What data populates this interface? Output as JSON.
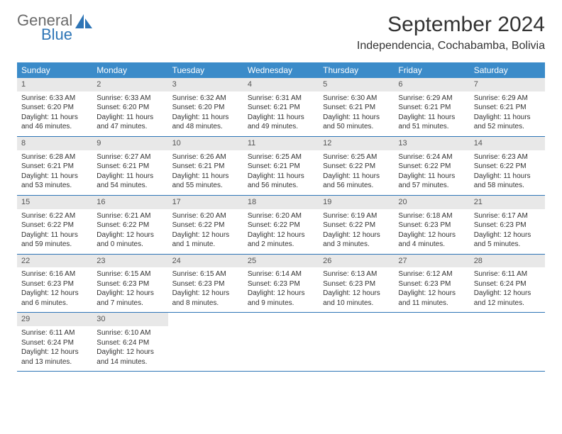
{
  "brand": {
    "general": "General",
    "blue": "Blue"
  },
  "title": "September 2024",
  "location": "Independencia, Cochabamba, Bolivia",
  "colors": {
    "header_bg": "#3b8bc9",
    "header_text": "#ffffff",
    "daynum_bg": "#e8e8e8",
    "week_border": "#2e75b6",
    "brand_gray": "#6b6b6b",
    "brand_blue": "#2e75b6",
    "text": "#333333",
    "page_bg": "#ffffff"
  },
  "typography": {
    "title_fontsize": 30,
    "location_fontsize": 16,
    "weekday_fontsize": 12,
    "cell_fontsize": 10
  },
  "weekdays": [
    "Sunday",
    "Monday",
    "Tuesday",
    "Wednesday",
    "Thursday",
    "Friday",
    "Saturday"
  ],
  "weeks": [
    [
      {
        "n": "1",
        "sunrise": "Sunrise: 6:33 AM",
        "sunset": "Sunset: 6:20 PM",
        "daylight": "Daylight: 11 hours and 46 minutes."
      },
      {
        "n": "2",
        "sunrise": "Sunrise: 6:33 AM",
        "sunset": "Sunset: 6:20 PM",
        "daylight": "Daylight: 11 hours and 47 minutes."
      },
      {
        "n": "3",
        "sunrise": "Sunrise: 6:32 AM",
        "sunset": "Sunset: 6:20 PM",
        "daylight": "Daylight: 11 hours and 48 minutes."
      },
      {
        "n": "4",
        "sunrise": "Sunrise: 6:31 AM",
        "sunset": "Sunset: 6:21 PM",
        "daylight": "Daylight: 11 hours and 49 minutes."
      },
      {
        "n": "5",
        "sunrise": "Sunrise: 6:30 AM",
        "sunset": "Sunset: 6:21 PM",
        "daylight": "Daylight: 11 hours and 50 minutes."
      },
      {
        "n": "6",
        "sunrise": "Sunrise: 6:29 AM",
        "sunset": "Sunset: 6:21 PM",
        "daylight": "Daylight: 11 hours and 51 minutes."
      },
      {
        "n": "7",
        "sunrise": "Sunrise: 6:29 AM",
        "sunset": "Sunset: 6:21 PM",
        "daylight": "Daylight: 11 hours and 52 minutes."
      }
    ],
    [
      {
        "n": "8",
        "sunrise": "Sunrise: 6:28 AM",
        "sunset": "Sunset: 6:21 PM",
        "daylight": "Daylight: 11 hours and 53 minutes."
      },
      {
        "n": "9",
        "sunrise": "Sunrise: 6:27 AM",
        "sunset": "Sunset: 6:21 PM",
        "daylight": "Daylight: 11 hours and 54 minutes."
      },
      {
        "n": "10",
        "sunrise": "Sunrise: 6:26 AM",
        "sunset": "Sunset: 6:21 PM",
        "daylight": "Daylight: 11 hours and 55 minutes."
      },
      {
        "n": "11",
        "sunrise": "Sunrise: 6:25 AM",
        "sunset": "Sunset: 6:21 PM",
        "daylight": "Daylight: 11 hours and 56 minutes."
      },
      {
        "n": "12",
        "sunrise": "Sunrise: 6:25 AM",
        "sunset": "Sunset: 6:22 PM",
        "daylight": "Daylight: 11 hours and 56 minutes."
      },
      {
        "n": "13",
        "sunrise": "Sunrise: 6:24 AM",
        "sunset": "Sunset: 6:22 PM",
        "daylight": "Daylight: 11 hours and 57 minutes."
      },
      {
        "n": "14",
        "sunrise": "Sunrise: 6:23 AM",
        "sunset": "Sunset: 6:22 PM",
        "daylight": "Daylight: 11 hours and 58 minutes."
      }
    ],
    [
      {
        "n": "15",
        "sunrise": "Sunrise: 6:22 AM",
        "sunset": "Sunset: 6:22 PM",
        "daylight": "Daylight: 11 hours and 59 minutes."
      },
      {
        "n": "16",
        "sunrise": "Sunrise: 6:21 AM",
        "sunset": "Sunset: 6:22 PM",
        "daylight": "Daylight: 12 hours and 0 minutes."
      },
      {
        "n": "17",
        "sunrise": "Sunrise: 6:20 AM",
        "sunset": "Sunset: 6:22 PM",
        "daylight": "Daylight: 12 hours and 1 minute."
      },
      {
        "n": "18",
        "sunrise": "Sunrise: 6:20 AM",
        "sunset": "Sunset: 6:22 PM",
        "daylight": "Daylight: 12 hours and 2 minutes."
      },
      {
        "n": "19",
        "sunrise": "Sunrise: 6:19 AM",
        "sunset": "Sunset: 6:22 PM",
        "daylight": "Daylight: 12 hours and 3 minutes."
      },
      {
        "n": "20",
        "sunrise": "Sunrise: 6:18 AM",
        "sunset": "Sunset: 6:23 PM",
        "daylight": "Daylight: 12 hours and 4 minutes."
      },
      {
        "n": "21",
        "sunrise": "Sunrise: 6:17 AM",
        "sunset": "Sunset: 6:23 PM",
        "daylight": "Daylight: 12 hours and 5 minutes."
      }
    ],
    [
      {
        "n": "22",
        "sunrise": "Sunrise: 6:16 AM",
        "sunset": "Sunset: 6:23 PM",
        "daylight": "Daylight: 12 hours and 6 minutes."
      },
      {
        "n": "23",
        "sunrise": "Sunrise: 6:15 AM",
        "sunset": "Sunset: 6:23 PM",
        "daylight": "Daylight: 12 hours and 7 minutes."
      },
      {
        "n": "24",
        "sunrise": "Sunrise: 6:15 AM",
        "sunset": "Sunset: 6:23 PM",
        "daylight": "Daylight: 12 hours and 8 minutes."
      },
      {
        "n": "25",
        "sunrise": "Sunrise: 6:14 AM",
        "sunset": "Sunset: 6:23 PM",
        "daylight": "Daylight: 12 hours and 9 minutes."
      },
      {
        "n": "26",
        "sunrise": "Sunrise: 6:13 AM",
        "sunset": "Sunset: 6:23 PM",
        "daylight": "Daylight: 12 hours and 10 minutes."
      },
      {
        "n": "27",
        "sunrise": "Sunrise: 6:12 AM",
        "sunset": "Sunset: 6:23 PM",
        "daylight": "Daylight: 12 hours and 11 minutes."
      },
      {
        "n": "28",
        "sunrise": "Sunrise: 6:11 AM",
        "sunset": "Sunset: 6:24 PM",
        "daylight": "Daylight: 12 hours and 12 minutes."
      }
    ],
    [
      {
        "n": "29",
        "sunrise": "Sunrise: 6:11 AM",
        "sunset": "Sunset: 6:24 PM",
        "daylight": "Daylight: 12 hours and 13 minutes."
      },
      {
        "n": "30",
        "sunrise": "Sunrise: 6:10 AM",
        "sunset": "Sunset: 6:24 PM",
        "daylight": "Daylight: 12 hours and 14 minutes."
      },
      null,
      null,
      null,
      null,
      null
    ]
  ]
}
